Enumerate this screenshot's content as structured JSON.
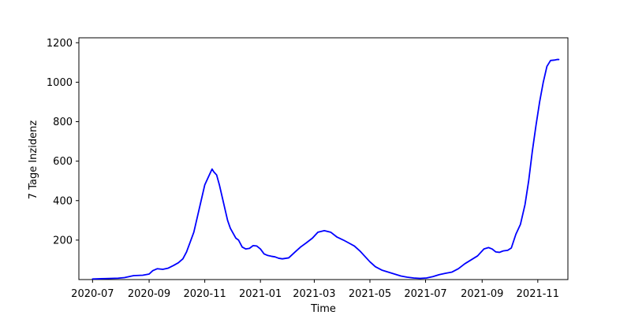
{
  "chart_data": {
    "type": "line",
    "title": "",
    "xlabel": "Time",
    "ylabel": "7 Tage Inzidenz",
    "x_axis_kind": "date",
    "xlim": [
      "2020-06-16",
      "2021-12-04"
    ],
    "ylim": [
      0,
      1225
    ],
    "x_ticks": [
      "2020-07",
      "2020-09",
      "2020-11",
      "2021-01",
      "2021-03",
      "2021-05",
      "2021-07",
      "2021-09",
      "2021-11"
    ],
    "y_ticks": [
      200,
      400,
      600,
      800,
      1000,
      1200
    ],
    "grid": false,
    "legend": "none",
    "series_color": "#0000ff",
    "series": [
      {
        "x": [
          "2020-07-01",
          "2020-07-15",
          "2020-07-29",
          "2020-08-05",
          "2020-08-15",
          "2020-08-25",
          "2020-09-01",
          "2020-09-05",
          "2020-09-10",
          "2020-09-16",
          "2020-09-22",
          "2020-09-28",
          "2020-10-03",
          "2020-10-08",
          "2020-10-12",
          "2020-10-16",
          "2020-10-20",
          "2020-10-24",
          "2020-10-28",
          "2020-11-01",
          "2020-11-05",
          "2020-11-09",
          "2020-11-11",
          "2020-11-14",
          "2020-11-17",
          "2020-11-20",
          "2020-11-23",
          "2020-11-26",
          "2020-11-29",
          "2020-12-02",
          "2020-12-05",
          "2020-12-08",
          "2020-12-12",
          "2020-12-16",
          "2020-12-20",
          "2020-12-24",
          "2020-12-28",
          "2021-01-01",
          "2021-01-05",
          "2021-01-09",
          "2021-01-13",
          "2021-01-17",
          "2021-01-21",
          "2021-01-25",
          "2021-02-01",
          "2021-02-08",
          "2021-02-14",
          "2021-02-20",
          "2021-02-27",
          "2021-03-05",
          "2021-03-12",
          "2021-03-19",
          "2021-03-26",
          "2021-04-02",
          "2021-04-08",
          "2021-04-14",
          "2021-04-20",
          "2021-04-26",
          "2021-05-01",
          "2021-05-07",
          "2021-05-14",
          "2021-05-21",
          "2021-05-28",
          "2021-06-04",
          "2021-06-11",
          "2021-06-18",
          "2021-06-25",
          "2021-07-02",
          "2021-07-09",
          "2021-07-16",
          "2021-07-23",
          "2021-07-30",
          "2021-08-06",
          "2021-08-13",
          "2021-08-20",
          "2021-08-27",
          "2021-09-03",
          "2021-09-08",
          "2021-09-12",
          "2021-09-16",
          "2021-09-20",
          "2021-09-24",
          "2021-09-29",
          "2021-10-03",
          "2021-10-08",
          "2021-10-13",
          "2021-10-18",
          "2021-10-22",
          "2021-10-26",
          "2021-10-30",
          "2021-11-03",
          "2021-11-07",
          "2021-11-11",
          "2021-11-15",
          "2021-11-19",
          "2021-11-22",
          "2021-11-24"
        ],
        "values": [
          3,
          5,
          7,
          10,
          20,
          22,
          28,
          45,
          55,
          52,
          58,
          72,
          85,
          105,
          140,
          190,
          240,
          320,
          400,
          480,
          520,
          560,
          545,
          530,
          480,
          420,
          360,
          300,
          260,
          235,
          210,
          200,
          165,
          155,
          158,
          172,
          170,
          155,
          130,
          122,
          118,
          115,
          108,
          105,
          110,
          140,
          165,
          185,
          210,
          240,
          248,
          240,
          215,
          200,
          185,
          170,
          145,
          115,
          90,
          65,
          48,
          38,
          28,
          18,
          12,
          8,
          6,
          8,
          15,
          25,
          32,
          38,
          55,
          80,
          100,
          120,
          155,
          162,
          155,
          140,
          138,
          145,
          148,
          160,
          230,
          280,
          380,
          500,
          650,
          780,
          900,
          1000,
          1080,
          1110,
          1112,
          1115,
          1115
        ]
      }
    ]
  }
}
